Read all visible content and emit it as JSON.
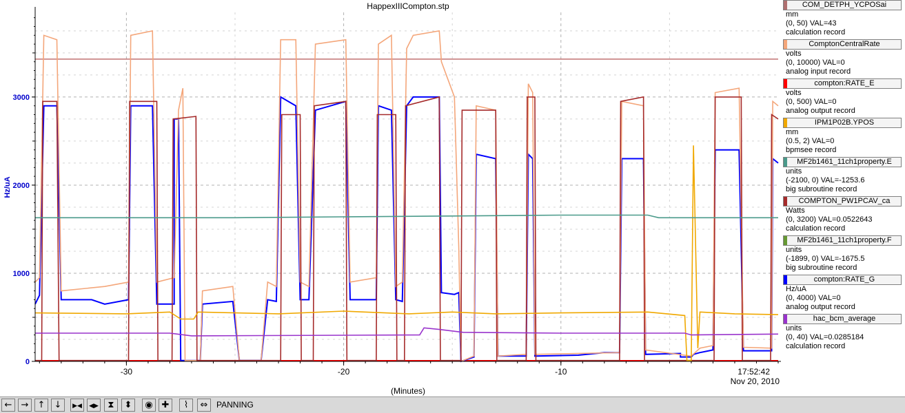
{
  "chart_data": {
    "type": "line",
    "title": "HappexIIICompton.stp",
    "xlabel": "(Minutes)",
    "ylabel": "Hz/uA",
    "xlim": [
      -34.2,
      0
    ],
    "ylim": [
      0,
      3960
    ],
    "x_ticks": [
      -30,
      -20,
      -10
    ],
    "y_ticks": [
      0,
      1000,
      2000,
      3000
    ],
    "grid": true,
    "time_label": "17:52:42",
    "date_label": "Nov 20, 2010",
    "series": [
      {
        "name": "compton:RATE_G",
        "color": "#0000ff",
        "points": [
          [
            -34.2,
            650
          ],
          [
            -34.0,
            750
          ],
          [
            -33.8,
            2900
          ],
          [
            -33.2,
            2900
          ],
          [
            -33.0,
            700
          ],
          [
            -31.6,
            700
          ],
          [
            -31.0,
            650
          ],
          [
            -29.9,
            700
          ],
          [
            -29.8,
            2900
          ],
          [
            -28.8,
            2900
          ],
          [
            -28.6,
            650
          ],
          [
            -27.8,
            650
          ],
          [
            -27.8,
            2750
          ],
          [
            -27.6,
            2750
          ],
          [
            -27.5,
            10
          ],
          [
            -26.6,
            10
          ],
          [
            -26.5,
            650
          ],
          [
            -25.1,
            680
          ],
          [
            -24.8,
            10
          ],
          [
            -23.8,
            10
          ],
          [
            -23.5,
            700
          ],
          [
            -23.1,
            680
          ],
          [
            -22.9,
            3000
          ],
          [
            -22.2,
            2900
          ],
          [
            -22.0,
            700
          ],
          [
            -21.6,
            700
          ],
          [
            -21.3,
            2850
          ],
          [
            -19.9,
            2950
          ],
          [
            -19.7,
            700
          ],
          [
            -18.5,
            700
          ],
          [
            -18.4,
            2900
          ],
          [
            -17.8,
            2850
          ],
          [
            -17.6,
            700
          ],
          [
            -17.3,
            680
          ],
          [
            -17.1,
            2900
          ],
          [
            -16.8,
            3000
          ],
          [
            -15.6,
            3000
          ],
          [
            -15.5,
            780
          ],
          [
            -14.9,
            760
          ],
          [
            -14.7,
            780
          ],
          [
            -14.6,
            0
          ],
          [
            -14.0,
            50
          ],
          [
            -13.9,
            2350
          ],
          [
            -13.0,
            2300
          ],
          [
            -12.9,
            60
          ],
          [
            -11.6,
            60
          ],
          [
            -11.5,
            2350
          ],
          [
            -11.3,
            2300
          ],
          [
            -11.2,
            60
          ],
          [
            -9.2,
            70
          ],
          [
            -8.0,
            100
          ],
          [
            -7.3,
            100
          ],
          [
            -7.2,
            2300
          ],
          [
            -6.2,
            2300
          ],
          [
            -6.1,
            80
          ],
          [
            -4.5,
            90
          ],
          [
            -4.5,
            50
          ],
          [
            -4.0,
            50
          ],
          [
            -3.9,
            80
          ],
          [
            -3.6,
            100
          ],
          [
            -3.0,
            130
          ],
          [
            -2.9,
            2400
          ],
          [
            -1.8,
            2400
          ],
          [
            -1.6,
            120
          ],
          [
            -0.3,
            120
          ],
          [
            -0.25,
            2300
          ],
          [
            0,
            2250
          ]
        ]
      },
      {
        "name": "ComptonCentralRate",
        "color": "#f4a67a",
        "points": [
          [
            -34.2,
            900
          ],
          [
            -34.0,
            950
          ],
          [
            -33.8,
            3700
          ],
          [
            -33.2,
            3650
          ],
          [
            -33.0,
            800
          ],
          [
            -31.0,
            850
          ],
          [
            -29.9,
            900
          ],
          [
            -29.8,
            3700
          ],
          [
            -28.8,
            3750
          ],
          [
            -28.6,
            900
          ],
          [
            -27.8,
            950
          ],
          [
            -27.6,
            2850
          ],
          [
            -27.4,
            3100
          ],
          [
            -27.3,
            10
          ],
          [
            -26.6,
            10
          ],
          [
            -26.5,
            800
          ],
          [
            -25.1,
            850
          ],
          [
            -24.8,
            10
          ],
          [
            -23.8,
            10
          ],
          [
            -23.5,
            900
          ],
          [
            -23.1,
            850
          ],
          [
            -22.9,
            3650
          ],
          [
            -22.2,
            3650
          ],
          [
            -22.0,
            900
          ],
          [
            -21.6,
            850
          ],
          [
            -21.3,
            3600
          ],
          [
            -19.9,
            3650
          ],
          [
            -19.7,
            900
          ],
          [
            -18.5,
            950
          ],
          [
            -18.4,
            3600
          ],
          [
            -17.8,
            3700
          ],
          [
            -17.6,
            850
          ],
          [
            -17.3,
            900
          ],
          [
            -17.1,
            3550
          ],
          [
            -16.8,
            3700
          ],
          [
            -15.6,
            3750
          ],
          [
            -15.5,
            3400
          ],
          [
            -14.9,
            3000
          ],
          [
            -14.7,
            1300
          ],
          [
            -14.6,
            0
          ],
          [
            -14.0,
            60
          ],
          [
            -13.9,
            2900
          ],
          [
            -13.0,
            2850
          ],
          [
            -12.9,
            60
          ],
          [
            -11.6,
            80
          ],
          [
            -11.5,
            3150
          ],
          [
            -11.3,
            3050
          ],
          [
            -11.2,
            80
          ],
          [
            -7.3,
            100
          ],
          [
            -7.2,
            2950
          ],
          [
            -6.2,
            2900
          ],
          [
            -6.1,
            130
          ],
          [
            -4.0,
            60
          ],
          [
            -3.6,
            150
          ],
          [
            -3.0,
            180
          ],
          [
            -2.9,
            3050
          ],
          [
            -1.8,
            3100
          ],
          [
            -1.6,
            160
          ],
          [
            -0.3,
            150
          ],
          [
            -0.25,
            2950
          ],
          [
            0,
            2900
          ]
        ]
      },
      {
        "name": "COMPTON_PW1PCAV_ca",
        "color": "#a52a2a",
        "points": [
          [
            -34.2,
            10
          ],
          [
            -33.9,
            10
          ],
          [
            -33.85,
            2950
          ],
          [
            -33.2,
            2950
          ],
          [
            -33.1,
            10
          ],
          [
            -29.9,
            10
          ],
          [
            -29.85,
            2950
          ],
          [
            -28.6,
            2950
          ],
          [
            -28.55,
            10
          ],
          [
            -27.9,
            10
          ],
          [
            -27.85,
            2750
          ],
          [
            -26.8,
            2780
          ],
          [
            -26.75,
            10
          ],
          [
            -22.9,
            10
          ],
          [
            -22.85,
            2800
          ],
          [
            -22.0,
            2800
          ],
          [
            -21.95,
            10
          ],
          [
            -21.4,
            10
          ],
          [
            -21.35,
            2900
          ],
          [
            -19.9,
            2950
          ],
          [
            -19.85,
            10
          ],
          [
            -18.5,
            10
          ],
          [
            -18.45,
            2800
          ],
          [
            -17.6,
            2800
          ],
          [
            -17.55,
            10
          ],
          [
            -17.2,
            10
          ],
          [
            -17.15,
            2900
          ],
          [
            -15.6,
            3000
          ],
          [
            -15.55,
            10
          ],
          [
            -14.6,
            10
          ],
          [
            -14.55,
            2850
          ],
          [
            -13.0,
            2850
          ],
          [
            -12.95,
            10
          ],
          [
            -11.6,
            10
          ],
          [
            -11.55,
            3000
          ],
          [
            -11.2,
            3000
          ],
          [
            -11.15,
            10
          ],
          [
            -7.3,
            10
          ],
          [
            -7.25,
            2950
          ],
          [
            -6.2,
            3000
          ],
          [
            -6.15,
            10
          ],
          [
            -2.95,
            10
          ],
          [
            -2.9,
            3000
          ],
          [
            -1.7,
            3000
          ],
          [
            -1.65,
            10
          ],
          [
            -0.35,
            10
          ],
          [
            -0.3,
            2800
          ],
          [
            0,
            2750
          ]
        ]
      },
      {
        "name": "IPM1P02B.YPOS",
        "color": "#f0a800",
        "points": [
          [
            -34.2,
            550
          ],
          [
            -30.0,
            540
          ],
          [
            -28.0,
            560
          ],
          [
            -27.5,
            480
          ],
          [
            -26.9,
            480
          ],
          [
            -26.7,
            560
          ],
          [
            -23.0,
            540
          ],
          [
            -20.0,
            570
          ],
          [
            -17.0,
            540
          ],
          [
            -15.0,
            560
          ],
          [
            -13.0,
            540
          ],
          [
            -10.0,
            550
          ],
          [
            -6.0,
            560
          ],
          [
            -4.3,
            520
          ],
          [
            -4.2,
            10
          ],
          [
            -4.0,
            10
          ],
          [
            -3.9,
            2450
          ],
          [
            -3.7,
            150
          ],
          [
            -3.6,
            560
          ],
          [
            -2.0,
            540
          ],
          [
            0,
            530
          ]
        ]
      },
      {
        "name": "MF2b1461_11ch1property.E",
        "color": "#4a9a8a",
        "points": [
          [
            -34.2,
            1630
          ],
          [
            -25.0,
            1630
          ],
          [
            -20.0,
            1640
          ],
          [
            -15.0,
            1650
          ],
          [
            -10.0,
            1660
          ],
          [
            -6.0,
            1660
          ],
          [
            -5.5,
            1630
          ],
          [
            0,
            1630
          ]
        ]
      },
      {
        "name": "hac_bcm_average",
        "color": "#9933cc",
        "points": [
          [
            -34.2,
            320
          ],
          [
            -28.0,
            320
          ],
          [
            -27.0,
            290
          ],
          [
            -16.5,
            300
          ],
          [
            -16.3,
            380
          ],
          [
            -15.5,
            360
          ],
          [
            -14.5,
            330
          ],
          [
            -10.0,
            320
          ],
          [
            -4.3,
            320
          ],
          [
            -4.0,
            300
          ],
          [
            0,
            310
          ]
        ]
      }
    ],
    "h_lines": [
      {
        "y": 3430,
        "color": "#c07070"
      },
      {
        "y": 10,
        "color": "#ff0000"
      }
    ]
  },
  "legend": [
    {
      "name": "COM_DETPH_YCPOSai",
      "color": "#b07070",
      "unit": "mm",
      "range": "(0, 50)  VAL=43",
      "record": "calculation record"
    },
    {
      "name": "ComptonCentralRate",
      "color": "#f4a67a",
      "unit": "volts",
      "range": "(0, 10000) VAL=0",
      "record": "analog input record"
    },
    {
      "name": "compton:RATE_E",
      "color": "#ff0000",
      "unit": "volts",
      "range": "(0, 500)  VAL=0",
      "record": "analog output record"
    },
    {
      "name": "IPM1P02B.YPOS",
      "color": "#f0a800",
      "unit": "mm",
      "range": "(0.5, 2) VAL=0",
      "record": "bpmsee record"
    },
    {
      "name": "MF2b1461_11ch1property.E",
      "color": "#4a9a8a",
      "unit": "units",
      "range": "(-2100, 0) VAL=-1253.6",
      "record": "big subroutine record"
    },
    {
      "name": "COMPTON_PW1PCAV_ca",
      "color": "#a52a2a",
      "unit": "Watts",
      "range": "(0, 3200) VAL=0.0522643",
      "record": "calculation record"
    },
    {
      "name": "MF2b1461_11ch1property.F",
      "color": "#669933",
      "unit": "units",
      "range": "(-1899, 0)  VAL=-1675.5",
      "record": "big subroutine record"
    },
    {
      "name": "compton:RATE_G",
      "color": "#0000ff",
      "unit": "Hz/uA",
      "range": "(0, 4000) VAL=0",
      "record": "analog output record"
    },
    {
      "name": "hac_bcm_average",
      "color": "#9933cc",
      "unit": "units",
      "range": "(0, 40) VAL=0.0285184",
      "record": "calculation record"
    }
  ],
  "toolbar": {
    "status": "PANNING",
    "buttons": [
      {
        "icon": "arrow-left-icon",
        "glyph": "←"
      },
      {
        "icon": "arrow-right-icon",
        "glyph": "→"
      },
      {
        "icon": "arrow-up-icon",
        "glyph": "↑"
      },
      {
        "icon": "arrow-down-icon",
        "glyph": "↓"
      },
      {
        "icon": "zoom-in-horizontal-icon",
        "glyph": "▶◀"
      },
      {
        "icon": "zoom-out-horizontal-icon",
        "glyph": "◀▶"
      },
      {
        "icon": "zoom-in-vertical-icon",
        "glyph": "⧗"
      },
      {
        "icon": "zoom-out-vertical-icon",
        "glyph": "⬍"
      },
      {
        "icon": "record-icon",
        "glyph": "◉"
      },
      {
        "icon": "plus-icon",
        "glyph": "✚"
      },
      {
        "icon": "autoscale-icon",
        "glyph": "⌇"
      },
      {
        "icon": "pan-horizontal-icon",
        "glyph": "⇔"
      }
    ]
  }
}
